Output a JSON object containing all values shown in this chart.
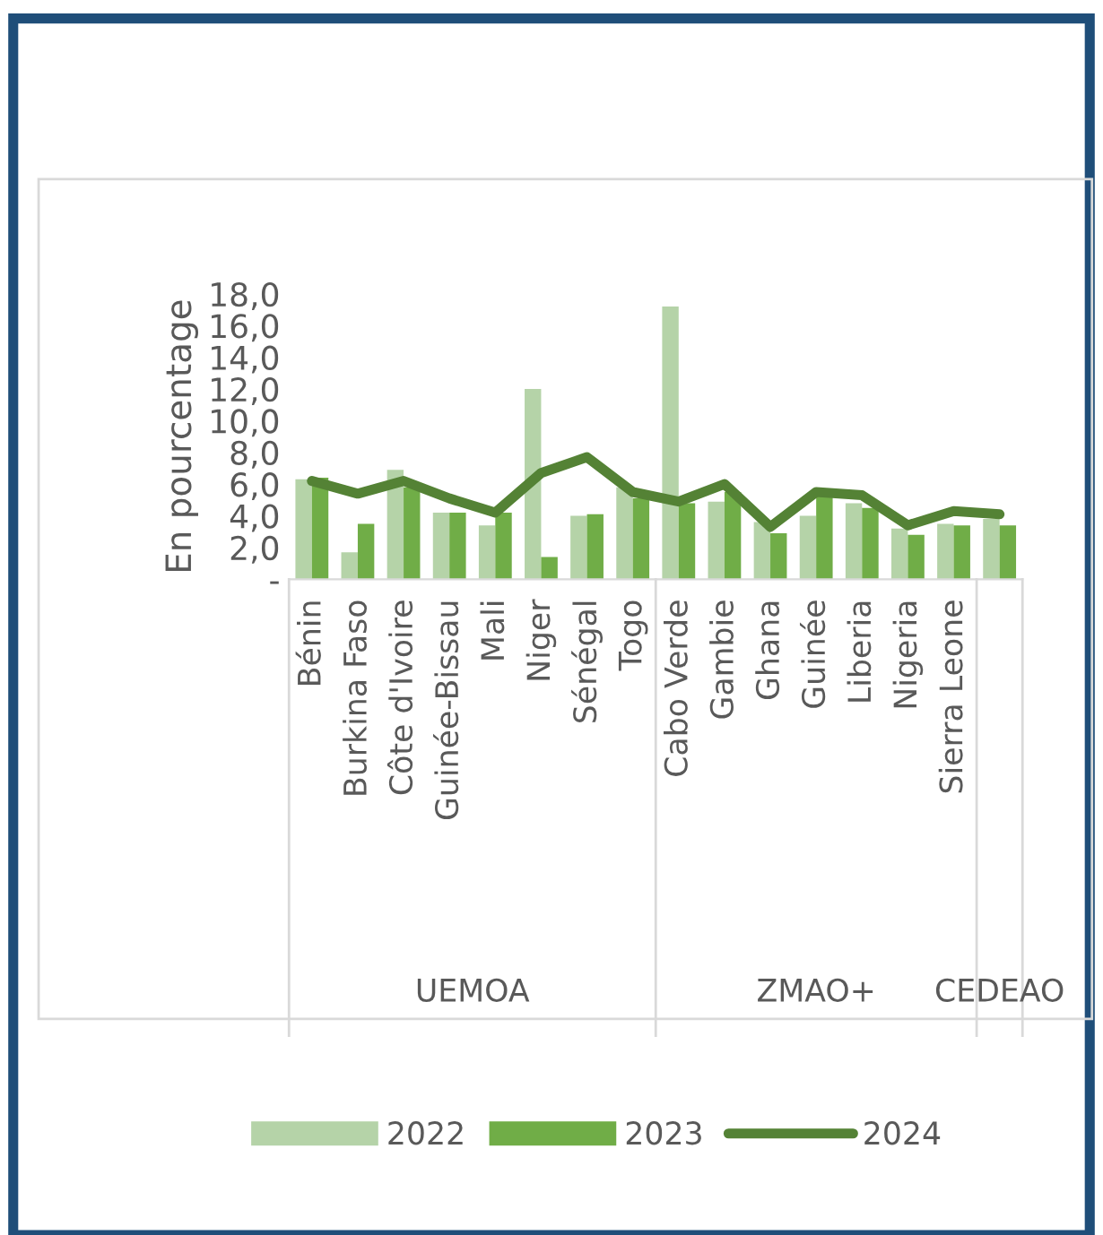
{
  "chart_data": {
    "type": "bar",
    "ylabel": "En pourcentage",
    "categories": [
      "Bénin",
      "Burkina Faso",
      "Côte d'Ivoire",
      "Guinée-Bissau",
      "Mali",
      "Niger",
      "Sénégal",
      "Togo",
      "Cabo Verde",
      "Gambie",
      "Ghana",
      "Guinée",
      "Liberia",
      "Nigeria",
      "Sierra Leone",
      null
    ],
    "series": [
      {
        "name": "2022",
        "color": "#b5d3a8",
        "values": [
          6.3,
          1.7,
          6.9,
          4.2,
          3.4,
          12.0,
          4.0,
          5.8,
          17.2,
          4.9,
          3.6,
          4.0,
          4.8,
          3.2,
          3.5,
          3.8
        ]
      },
      {
        "name": "2023",
        "color": "#70ad47",
        "values": [
          6.4,
          3.5,
          5.8,
          4.2,
          4.2,
          1.4,
          4.1,
          5.1,
          4.8,
          5.5,
          2.9,
          5.3,
          4.5,
          2.8,
          3.4,
          3.4
        ]
      },
      {
        "name": "2024",
        "type": "line",
        "color": "#548235",
        "values": [
          6.2,
          5.4,
          6.2,
          5.1,
          4.2,
          6.7,
          7.7,
          5.5,
          4.9,
          6.0,
          3.3,
          5.5,
          5.3,
          3.4,
          4.3,
          4.1
        ]
      }
    ],
    "annotations": [
      "UEMOA",
      "ZMAO+",
      "CEDEAO"
    ],
    "ylim": [
      0,
      18
    ],
    "yticks": [
      {
        "value": 0,
        "label": "-"
      },
      {
        "value": 2,
        "label": "2,0"
      },
      {
        "value": 4,
        "label": "4,0"
      },
      {
        "value": 6,
        "label": "6,0"
      },
      {
        "value": 8,
        "label": "8,0"
      },
      {
        "value": 10,
        "label": "10,0"
      },
      {
        "value": 12,
        "label": "12,0"
      },
      {
        "value": 14,
        "label": "14,0"
      },
      {
        "value": 16,
        "label": "16,0"
      },
      {
        "value": 18,
        "label": "18,0"
      }
    ],
    "grid": false,
    "legend": "bottom"
  }
}
